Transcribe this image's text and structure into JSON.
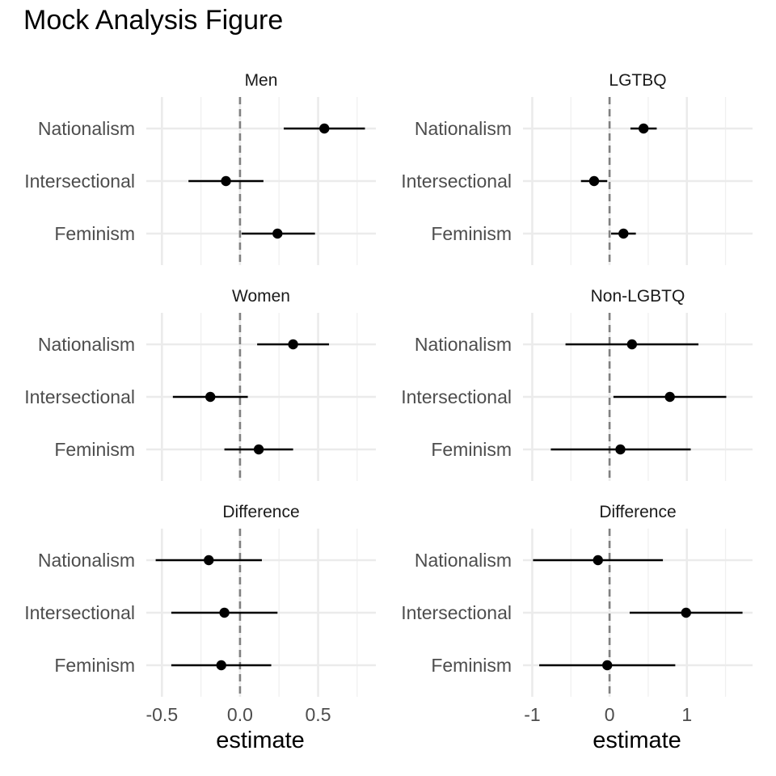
{
  "title": "Mock Analysis Figure",
  "chart_data": {
    "type": "scatter",
    "title": "Mock Analysis Figure",
    "categories": [
      "Nationalism",
      "Intersectional",
      "Feminism"
    ],
    "columns": [
      {
        "xlabel": "estimate",
        "xlim": [
          -0.6,
          0.87
        ],
        "xticks": [
          -0.5,
          0.0,
          0.5
        ],
        "xtick_labels": [
          "-0.5",
          "0.0",
          "0.5"
        ],
        "minor_breaks": [
          -0.25,
          0.25,
          0.75
        ],
        "reference_line": 0,
        "panels": [
          {
            "strip": "Men",
            "points": [
              {
                "category": "Nationalism",
                "estimate": 0.54,
                "low": 0.28,
                "high": 0.8
              },
              {
                "category": "Intersectional",
                "estimate": -0.09,
                "low": -0.33,
                "high": 0.15
              },
              {
                "category": "Feminism",
                "estimate": 0.24,
                "low": 0.01,
                "high": 0.48
              }
            ]
          },
          {
            "strip": "Women",
            "points": [
              {
                "category": "Nationalism",
                "estimate": 0.34,
                "low": 0.11,
                "high": 0.57
              },
              {
                "category": "Intersectional",
                "estimate": -0.19,
                "low": -0.43,
                "high": 0.05
              },
              {
                "category": "Feminism",
                "estimate": 0.12,
                "low": -0.1,
                "high": 0.34
              }
            ]
          },
          {
            "strip": "Difference",
            "points": [
              {
                "category": "Nationalism",
                "estimate": -0.2,
                "low": -0.54,
                "high": 0.14
              },
              {
                "category": "Intersectional",
                "estimate": -0.1,
                "low": -0.44,
                "high": 0.24
              },
              {
                "category": "Feminism",
                "estimate": -0.12,
                "low": -0.44,
                "high": 0.2
              }
            ]
          }
        ]
      },
      {
        "xlabel": "estimate",
        "xlim": [
          -1.12,
          1.85
        ],
        "xticks": [
          -1,
          0,
          1
        ],
        "xtick_labels": [
          "-1",
          "0",
          "1"
        ],
        "minor_breaks": [
          -0.5,
          0.5,
          1.5
        ],
        "reference_line": 0,
        "panels": [
          {
            "strip": "LGTBQ",
            "points": [
              {
                "category": "Nationalism",
                "estimate": 0.44,
                "low": 0.27,
                "high": 0.61
              },
              {
                "category": "Intersectional",
                "estimate": -0.2,
                "low": -0.37,
                "high": -0.03
              },
              {
                "category": "Feminism",
                "estimate": 0.18,
                "low": 0.02,
                "high": 0.34
              }
            ]
          },
          {
            "strip": "Non-LGBTQ",
            "points": [
              {
                "category": "Nationalism",
                "estimate": 0.29,
                "low": -0.57,
                "high": 1.15
              },
              {
                "category": "Intersectional",
                "estimate": 0.78,
                "low": 0.05,
                "high": 1.51
              },
              {
                "category": "Feminism",
                "estimate": 0.14,
                "low": -0.76,
                "high": 1.05
              }
            ]
          },
          {
            "strip": "Difference",
            "points": [
              {
                "category": "Nationalism",
                "estimate": -0.15,
                "low": -0.99,
                "high": 0.69
              },
              {
                "category": "Intersectional",
                "estimate": 0.99,
                "low": 0.26,
                "high": 1.72
              },
              {
                "category": "Feminism",
                "estimate": -0.03,
                "low": -0.91,
                "high": 0.85
              }
            ]
          }
        ]
      }
    ],
    "grid": true,
    "legend": "none"
  }
}
